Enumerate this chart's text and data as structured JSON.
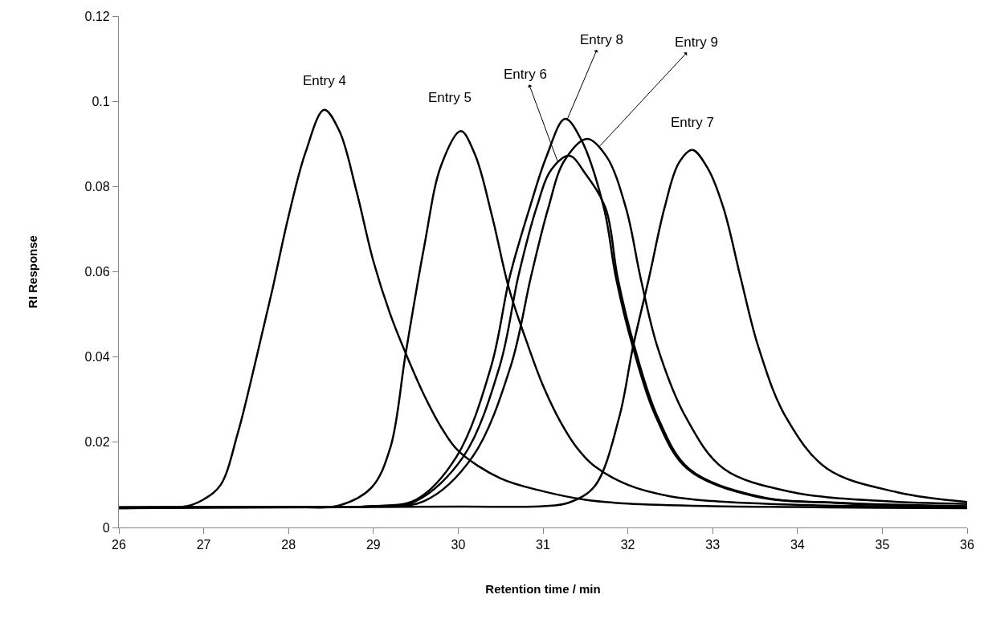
{
  "chart_data": {
    "type": "line",
    "xlabel": "Retention time / min",
    "ylabel": "RI Response",
    "xlim": [
      26,
      36
    ],
    "xticks": [
      26,
      27,
      28,
      29,
      30,
      31,
      32,
      33,
      34,
      35,
      36
    ],
    "ylim": [
      0,
      0.12
    ],
    "yticks": [
      0,
      0.02,
      0.04,
      0.06,
      0.08,
      0.1,
      0.12
    ],
    "marker": "none",
    "line_style": "solid",
    "series": [
      {
        "color": "#000000",
        "x": [
          26,
          26.5,
          26.8,
          27.0,
          27.2,
          27.4,
          27.6,
          27.8,
          28.0,
          28.2,
          28.42,
          28.6,
          28.8,
          29.0,
          29.2,
          29.4,
          29.6,
          29.8,
          30.0,
          30.5,
          31.0,
          31.5,
          32.0,
          33.0,
          34.0,
          35.0,
          36.0
        ],
        "values": [
          0.0045,
          0.0047,
          0.005,
          0.0066,
          0.01,
          0.022,
          0.038,
          0.055,
          0.073,
          0.088,
          0.098,
          0.093,
          0.079,
          0.0625,
          0.05,
          0.04,
          0.031,
          0.0235,
          0.018,
          0.0115,
          0.0085,
          0.0065,
          0.0056,
          0.005,
          0.0048,
          0.0046,
          0.0045
        ]
      },
      {
        "color": "#000000",
        "x": [
          26,
          27,
          28,
          28.6,
          28.98,
          29.2,
          29.38,
          29.6,
          29.8,
          30.03,
          30.2,
          30.4,
          30.6,
          30.8,
          31.0,
          31.2,
          31.4,
          31.6,
          32.0,
          32.5,
          33.0,
          34.0,
          35.0,
          36.0
        ],
        "values": [
          0.0047,
          0.0048,
          0.0048,
          0.0052,
          0.0094,
          0.0187,
          0.0407,
          0.066,
          0.085,
          0.093,
          0.0874,
          0.073,
          0.056,
          0.044,
          0.0333,
          0.025,
          0.0187,
          0.0145,
          0.01,
          0.0073,
          0.0062,
          0.0053,
          0.005,
          0.0048
        ]
      },
      {
        "color": "#000000",
        "x": [
          26,
          28,
          29.0,
          29.5,
          29.98,
          30.39,
          30.61,
          30.84,
          31.04,
          31.26,
          31.45,
          31.72,
          31.86,
          32.06,
          32.33,
          32.7,
          33.5,
          34.5,
          36.0
        ],
        "values": [
          0.0047,
          0.0048,
          0.005,
          0.0065,
          0.0166,
          0.0379,
          0.059,
          0.0748,
          0.087,
          0.0959,
          0.091,
          0.0748,
          0.0586,
          0.0423,
          0.026,
          0.0138,
          0.0073,
          0.0058,
          0.005
        ]
      },
      {
        "color": "#000000",
        "x": [
          26,
          28,
          29.0,
          29.5,
          30.06,
          30.49,
          30.71,
          30.92,
          31.1,
          31.31,
          31.5,
          31.74,
          31.88,
          32.08,
          32.35,
          32.72,
          33.54,
          34.5,
          36.0
        ],
        "values": [
          0.0047,
          0.0048,
          0.005,
          0.0062,
          0.0166,
          0.0379,
          0.059,
          0.0748,
          0.084,
          0.0872,
          0.083,
          0.0748,
          0.0586,
          0.0423,
          0.026,
          0.0138,
          0.0073,
          0.0057,
          0.0049
        ]
      },
      {
        "color": "#000000",
        "x": [
          26,
          28,
          29.0,
          29.6,
          30.17,
          30.62,
          30.86,
          31.06,
          31.25,
          31.52,
          31.75,
          31.98,
          32.15,
          32.35,
          32.68,
          33.13,
          33.94,
          35.0,
          36.0
        ],
        "values": [
          0.0047,
          0.0048,
          0.005,
          0.0062,
          0.0166,
          0.0379,
          0.059,
          0.0748,
          0.086,
          0.0912,
          0.087,
          0.0748,
          0.0586,
          0.0423,
          0.026,
          0.0138,
          0.0083,
          0.0062,
          0.0055
        ]
      },
      {
        "color": "#000000",
        "x": [
          26,
          28,
          30,
          31.0,
          31.3,
          31.61,
          31.9,
          32.06,
          32.25,
          32.43,
          32.6,
          32.76,
          32.95,
          33.13,
          33.33,
          33.54,
          33.86,
          34.35,
          35.17,
          36.0
        ],
        "values": [
          0.0045,
          0.0047,
          0.0049,
          0.005,
          0.0058,
          0.0097,
          0.026,
          0.0423,
          0.0586,
          0.0748,
          0.0855,
          0.0886,
          0.084,
          0.0748,
          0.0586,
          0.0423,
          0.026,
          0.0138,
          0.0083,
          0.006
        ]
      }
    ],
    "annotations": [
      {
        "text": "Entry 4",
        "x": 28.42,
        "y": 0.098
      },
      {
        "text": "Entry 5",
        "x": 29.9,
        "y": 0.091
      },
      {
        "text": "Entry 6",
        "x": 31.17,
        "y": 0.086
      },
      {
        "text": "Entry 8",
        "x": 31.28,
        "y": 0.0955
      },
      {
        "text": "Entry 9",
        "x": 31.67,
        "y": 0.0895
      },
      {
        "text": "Entry 7",
        "x": 32.76,
        "y": 0.0886
      }
    ]
  }
}
